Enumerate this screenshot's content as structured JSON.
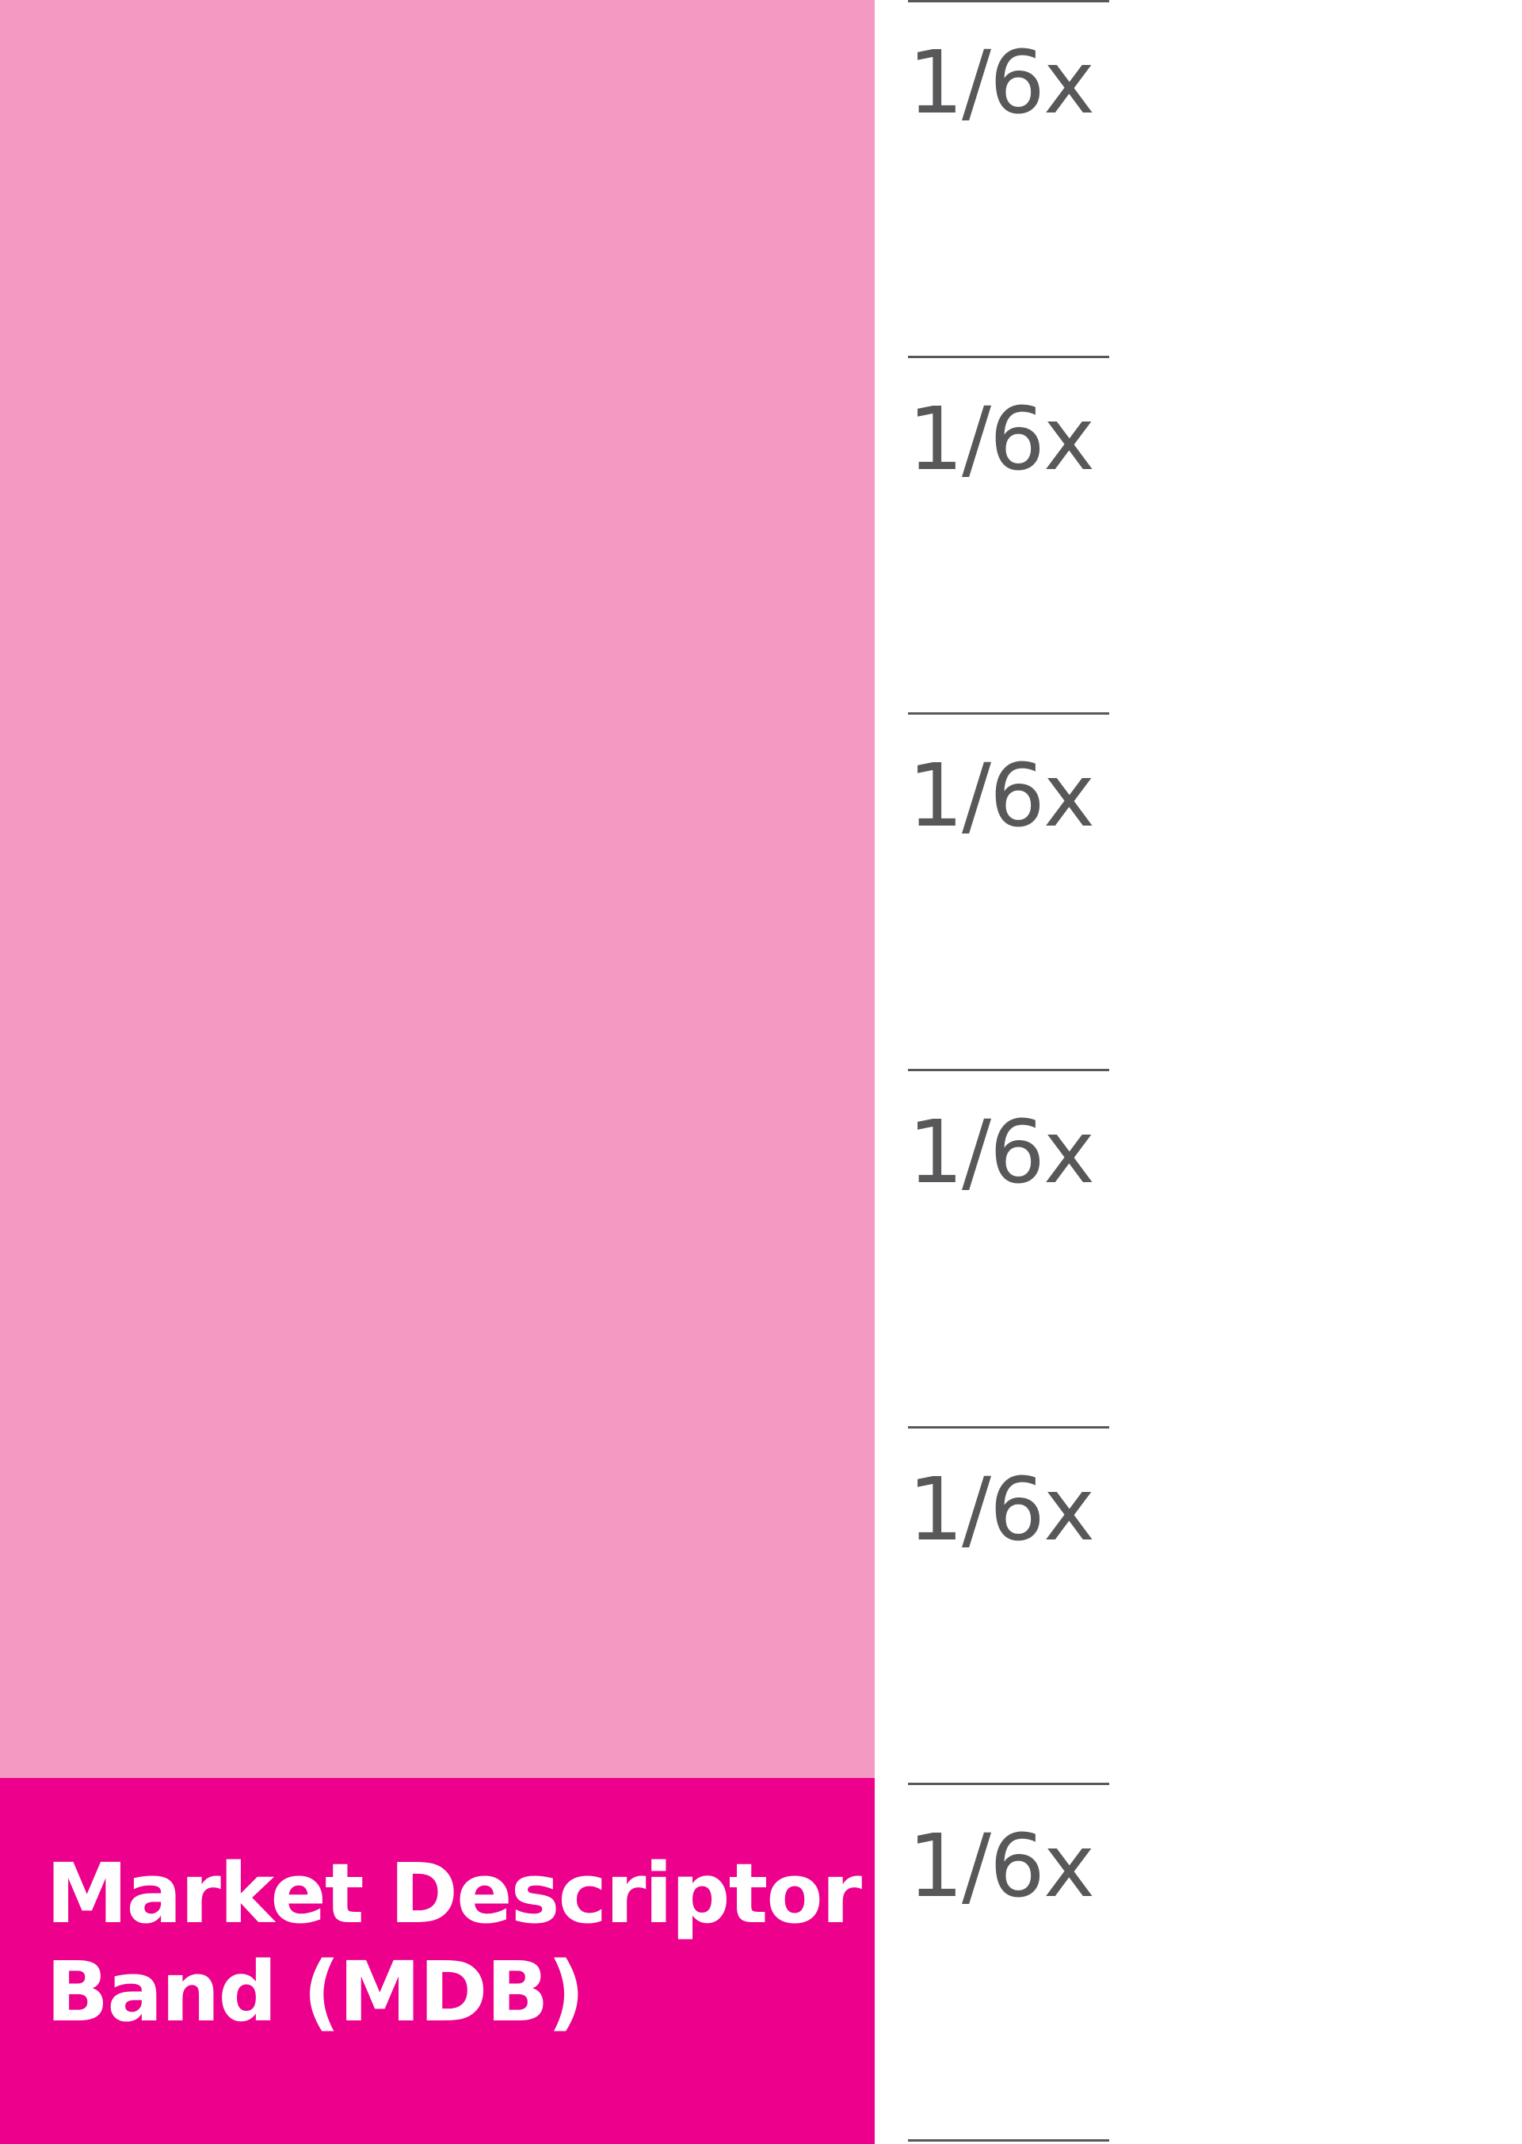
{
  "colors": {
    "pink_light": "#f49ac2",
    "pink_band": "#ec008c",
    "rule_and_label_gray": "#58585a",
    "background": "#ffffff"
  },
  "band": {
    "label_line1": "Market Descriptor",
    "label_line2": "Band (MDB)"
  },
  "ratios": [
    "1/6x",
    "1/6x",
    "1/6x",
    "1/6x",
    "1/6x",
    "1/6x"
  ]
}
